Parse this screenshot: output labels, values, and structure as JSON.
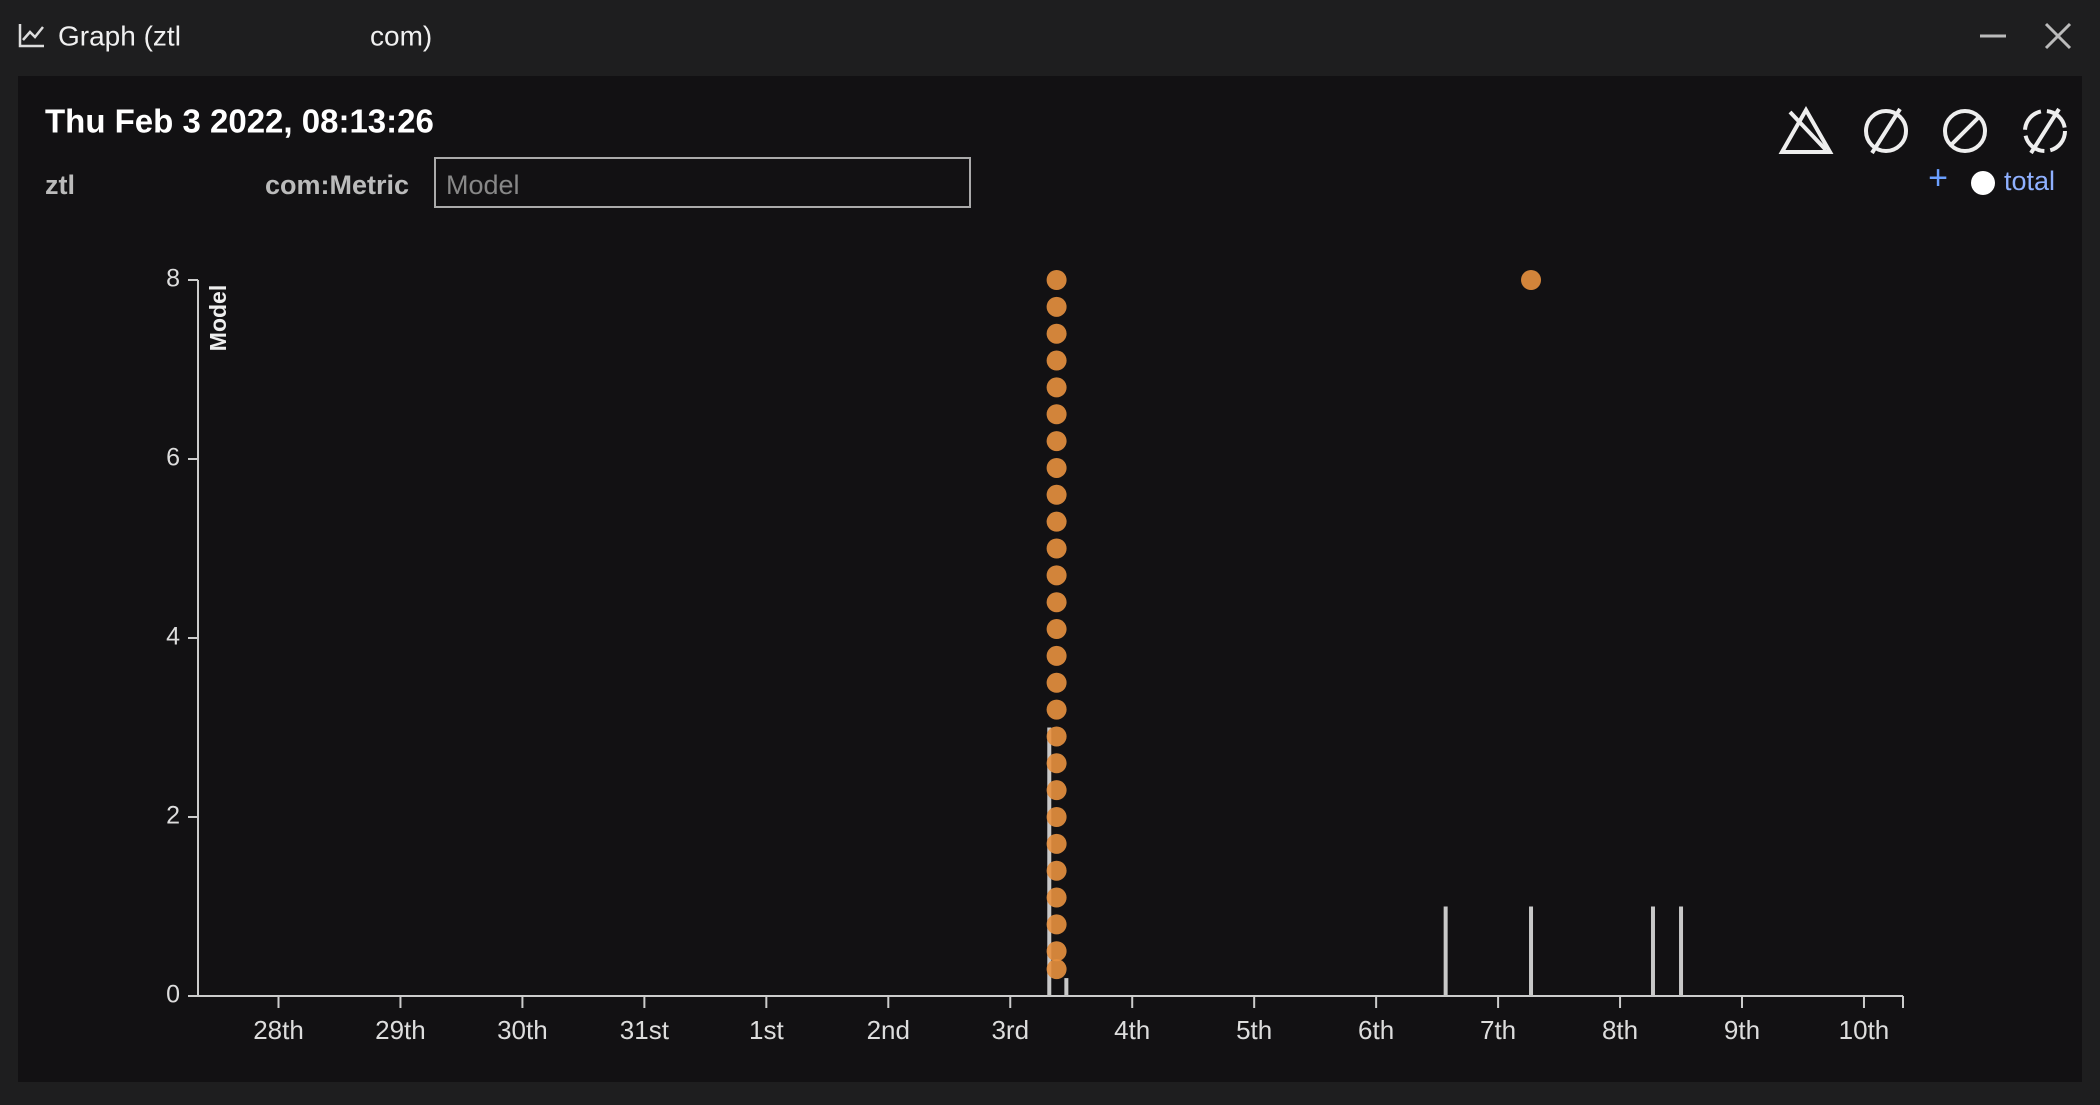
{
  "window": {
    "title_start": "Graph (ztl",
    "title_end": "com)"
  },
  "header": {
    "timestamp": "Thu Feb 3 2022, 08:13:26",
    "source_label": "ztl",
    "metric_label": "com:Metric",
    "metric_placeholder": "Model"
  },
  "legend": {
    "add": "+",
    "label": "total"
  },
  "chart_data": {
    "type": "scatter",
    "y_label": "Model",
    "xlim": [
      -0.66,
      13.32
    ],
    "xticks": [
      {
        "value": 0,
        "label": "28th"
      },
      {
        "value": 1,
        "label": "29th"
      },
      {
        "value": 2,
        "label": "30th"
      },
      {
        "value": 3,
        "label": "31st"
      },
      {
        "value": 4,
        "label": "1st"
      },
      {
        "value": 5,
        "label": "2nd"
      },
      {
        "value": 6,
        "label": "3rd"
      },
      {
        "value": 7,
        "label": "4th"
      },
      {
        "value": 8,
        "label": "5th"
      },
      {
        "value": 9,
        "label": "6th"
      },
      {
        "value": 10,
        "label": "7th"
      },
      {
        "value": 11,
        "label": "8th"
      },
      {
        "value": 12,
        "label": "9th"
      },
      {
        "value": 13,
        "label": "10th"
      }
    ],
    "ylim": [
      0,
      8
    ],
    "yticks": [
      0,
      2,
      4,
      6,
      8
    ],
    "points": {
      "color": "#e8913f",
      "x": [
        6.38,
        6.38,
        6.38,
        6.38,
        6.38,
        6.38,
        6.38,
        6.38,
        6.38,
        6.38,
        6.38,
        6.38,
        6.38,
        6.38,
        6.38,
        6.38,
        6.38,
        6.38,
        6.38,
        6.38,
        6.38,
        6.38,
        6.38,
        6.38,
        6.38,
        6.38,
        6.38,
        10.27
      ],
      "values": [
        8,
        7.7,
        7.4,
        7.1,
        6.8,
        6.5,
        6.2,
        5.9,
        5.6,
        5.3,
        5.0,
        4.7,
        4.4,
        4.1,
        3.8,
        3.5,
        3.2,
        2.9,
        2.6,
        2.3,
        2.0,
        1.7,
        1.4,
        1.1,
        0.8,
        0.5,
        0.3,
        8
      ]
    },
    "spikes": {
      "color": "#c8c8c8",
      "x": [
        6.32,
        6.46,
        9.57,
        10.27,
        11.27,
        11.5
      ],
      "values": [
        3,
        0.2,
        1,
        1,
        1,
        1
      ]
    }
  }
}
